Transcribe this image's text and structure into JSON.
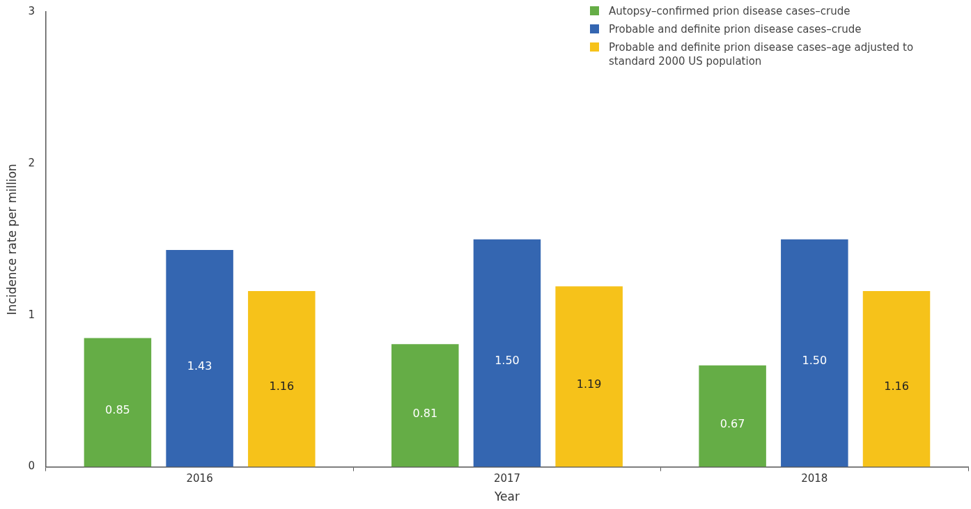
{
  "chart_data": {
    "type": "bar",
    "xlabel": "Year",
    "ylabel": "Incidence rate per million",
    "categories": [
      "2016",
      "2017",
      "2018"
    ],
    "series": [
      {
        "name": "Autopsy–confirmed prion disease cases–crude",
        "color": "#65ad46",
        "values": [
          0.85,
          0.81,
          0.67
        ],
        "value_labels": [
          "0.85",
          "0.81",
          "0.67"
        ]
      },
      {
        "name": "Probable and definite prion disease cases–crude",
        "color": "#3466b1",
        "values": [
          1.43,
          1.5,
          1.5
        ],
        "value_labels": [
          "1.43",
          "1.50",
          "1.50"
        ]
      },
      {
        "name": "Probable and definite prion disease cases–age adjusted to standard 2000 US population",
        "color": "#f6c21a",
        "values": [
          1.16,
          1.19,
          1.16
        ],
        "value_labels": [
          "1.16",
          "1.19",
          "1.16"
        ]
      }
    ],
    "ylim": [
      0,
      3
    ],
    "yticks": [
      0,
      1,
      2,
      3
    ],
    "grid": false,
    "legend": "top right"
  }
}
